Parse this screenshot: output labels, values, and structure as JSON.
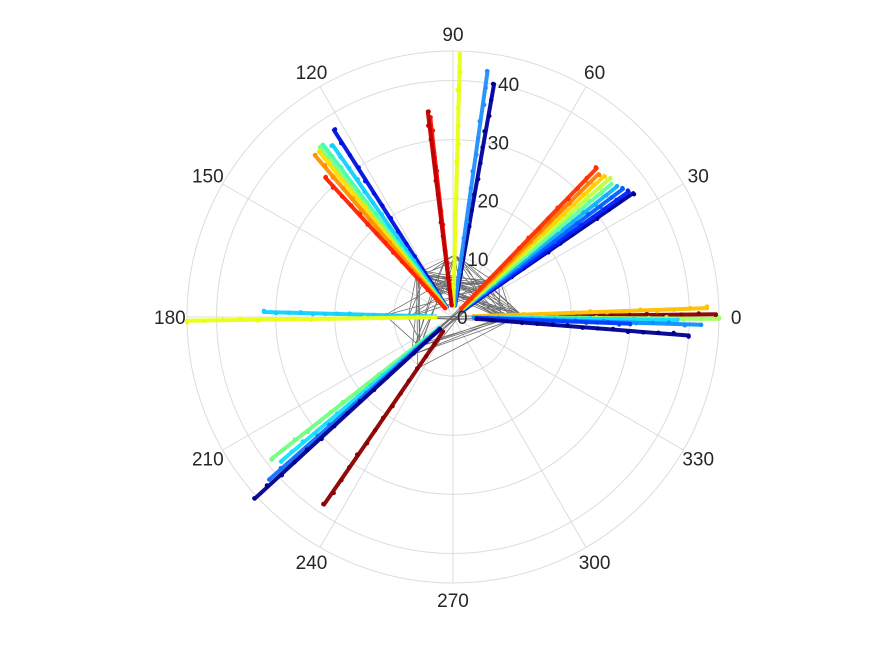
{
  "chart_data": {
    "type": "polar-scatter",
    "title": "",
    "r_ticks": [
      "0",
      "10",
      "20",
      "30",
      "40"
    ],
    "r_lim": [
      0,
      45
    ],
    "theta_ticks": [
      "0",
      "30",
      "60",
      "90",
      "120",
      "150",
      "180",
      "210",
      "240",
      "270",
      "300",
      "330"
    ],
    "grid": true,
    "colormap": "jet",
    "rays": [
      {
        "theta": 0.6,
        "r_start": 3.5,
        "r_end": 44.5,
        "color": "#8b0000"
      },
      {
        "theta": 2.0,
        "r_start": 3.5,
        "r_end": 43.0,
        "color": "#ffc000"
      },
      {
        "theta": -0.4,
        "r_start": 3.5,
        "r_end": 45.0,
        "color": "#a0ff60"
      },
      {
        "theta": -0.8,
        "r_start": 3.5,
        "r_end": 38.0,
        "color": "#10e0ff"
      },
      {
        "theta": -1.8,
        "r_start": 3.5,
        "r_end": 42.0,
        "color": "#1090ff"
      },
      {
        "theta": -2.2,
        "r_start": 4.0,
        "r_end": 30.0,
        "color": "#0040ff"
      },
      {
        "theta": -4.5,
        "r_start": 4.0,
        "r_end": 40.0,
        "color": "#00008f"
      },
      {
        "theta": 34.5,
        "r_start": 2.0,
        "r_end": 37.0,
        "color": "#00009a"
      },
      {
        "theta": 35.5,
        "r_start": 2.0,
        "r_end": 36.5,
        "color": "#0020ff"
      },
      {
        "theta": 37.0,
        "r_start": 2.0,
        "r_end": 36.0,
        "color": "#0060ff"
      },
      {
        "theta": 38.5,
        "r_start": 2.0,
        "r_end": 35.5,
        "color": "#10b0ff"
      },
      {
        "theta": 40.0,
        "r_start": 2.0,
        "r_end": 35.0,
        "color": "#60ffa0"
      },
      {
        "theta": 41.5,
        "r_start": 2.0,
        "r_end": 35.5,
        "color": "#c0ff40"
      },
      {
        "theta": 43.0,
        "r_start": 2.0,
        "r_end": 35.0,
        "color": "#ffd000"
      },
      {
        "theta": 44.5,
        "r_start": 2.0,
        "r_end": 34.5,
        "color": "#ff8000"
      },
      {
        "theta": 46.0,
        "r_start": 2.0,
        "r_end": 35.0,
        "color": "#ff3000"
      },
      {
        "theta": 80.0,
        "r_start": 2.0,
        "r_end": 40.0,
        "color": "#00009a"
      },
      {
        "theta": 82.0,
        "r_start": 2.0,
        "r_end": 42.0,
        "color": "#2090ff"
      },
      {
        "theta": 88.5,
        "r_start": 2.0,
        "r_end": 44.5,
        "color": "#e8ff10"
      },
      {
        "theta": 96.5,
        "r_start": 2.0,
        "r_end": 34.0,
        "color": "#ff1000"
      },
      {
        "theta": 97.0,
        "r_start": 2.0,
        "r_end": 35.0,
        "color": "#c00000"
      },
      {
        "theta": 122.5,
        "r_start": 2.0,
        "r_end": 37.5,
        "color": "#0010e0"
      },
      {
        "theta": 125.0,
        "r_start": 2.0,
        "r_end": 35.5,
        "color": "#10d0ff"
      },
      {
        "theta": 127.0,
        "r_start": 2.0,
        "r_end": 36.5,
        "color": "#40ffb0"
      },
      {
        "theta": 128.0,
        "r_start": 2.0,
        "r_end": 36.5,
        "color": "#80ff80"
      },
      {
        "theta": 129.0,
        "r_start": 2.0,
        "r_end": 36.0,
        "color": "#ffe000"
      },
      {
        "theta": 130.5,
        "r_start": 2.0,
        "r_end": 36.0,
        "color": "#ff9000"
      },
      {
        "theta": 132.5,
        "r_start": 2.0,
        "r_end": 32.0,
        "color": "#ff2000"
      },
      {
        "theta": 178.5,
        "r_start": 3.0,
        "r_end": 32.0,
        "color": "#10d0ff"
      },
      {
        "theta": 180.8,
        "r_start": 3.0,
        "r_end": 45.0,
        "color": "#e8ff10"
      },
      {
        "theta": 218.0,
        "r_start": 3.0,
        "r_end": 39.0,
        "color": "#70ff80"
      },
      {
        "theta": 220.0,
        "r_start": 3.0,
        "r_end": 38.0,
        "color": "#10e0ff"
      },
      {
        "theta": 221.5,
        "r_start": 3.0,
        "r_end": 41.5,
        "color": "#1070ff"
      },
      {
        "theta": 222.5,
        "r_start": 3.0,
        "r_end": 45.5,
        "color": "#00008f"
      },
      {
        "theta": 235.5,
        "r_start": 3.0,
        "r_end": 38.5,
        "color": "#8b0000"
      }
    ],
    "connections": true
  }
}
